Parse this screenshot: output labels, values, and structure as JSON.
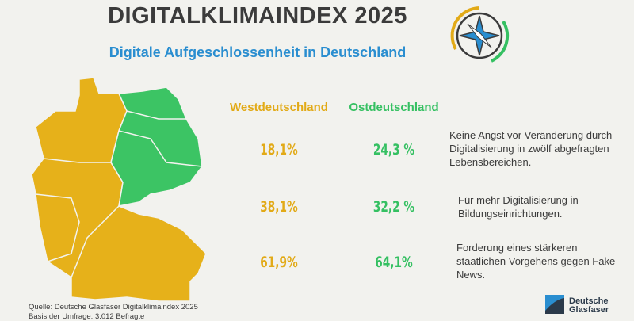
{
  "header": {
    "title": "DIGITALKLIMAINDEX 2025",
    "subtitle": "Digitale Aufgeschlossenheit in Deutschland"
  },
  "table": {
    "columns": [
      "Westdeutschland",
      "Ostdeutschland"
    ],
    "rows": [
      [
        "18,1%",
        "24,3 %",
        "Keine Angst vor Veränderung durch Digitalisierung in zwölf abgefragten Lebensbereichen."
      ],
      [
        "38,1%",
        "32,2 %",
        "Für mehr Digitalisierung in Bildungseinrichtungen."
      ],
      [
        "61,9%",
        "64,1%",
        "Forderung eines stärkeren staatlichen Vorgehens gegen Fake News."
      ]
    ]
  },
  "footer": {
    "source": "Quelle: Deutsche Glasfaser Digitalklimaindex 2025",
    "basis": "Basis der Umfrage: 3.012 Befragte"
  },
  "logo": [
    "Deutsche",
    "Glasfaser"
  ]
}
